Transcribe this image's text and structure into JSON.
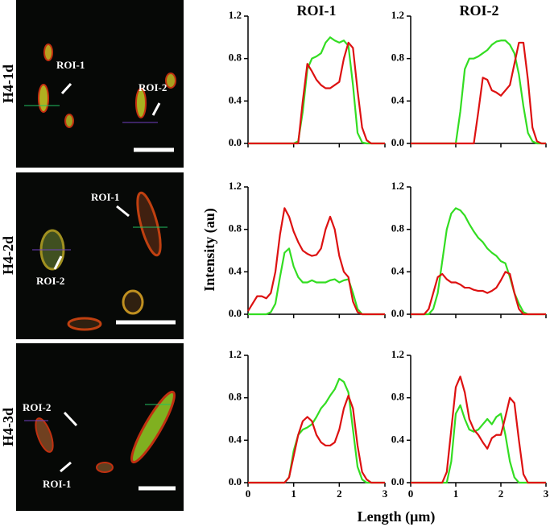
{
  "figure": {
    "column_titles": [
      "ROI-1",
      "ROI-2"
    ],
    "y_label": "Intensity (au)",
    "x_label": "Length (μm)"
  },
  "images": [
    {
      "row_label": "H4-1d",
      "annotations": [
        "ROI-1",
        "ROI-2"
      ]
    },
    {
      "row_label": "H4-2d",
      "annotations": [
        "ROI-1",
        "ROI-2"
      ]
    },
    {
      "row_label": "H4-3d",
      "annotations": [
        "ROI-2",
        "ROI-1"
      ]
    }
  ],
  "chart_data": [
    {
      "type": "line",
      "xlim": [
        0,
        3
      ],
      "ylim": [
        0,
        1.2
      ],
      "xticks": [
        0,
        1,
        2,
        3
      ],
      "yticks": [
        {
          "value": 0,
          "label": "0.0"
        },
        0.4,
        0.8,
        1.2
      ],
      "x": [
        0,
        0.1,
        0.2,
        0.3,
        0.4,
        0.5,
        0.6,
        0.7,
        0.8,
        0.9,
        1,
        1.1,
        1.2,
        1.3,
        1.4,
        1.5,
        1.6,
        1.7,
        1.8,
        1.9,
        2,
        2.1,
        2.2,
        2.3,
        2.4,
        2.5,
        2.6,
        2.7,
        2.8,
        2.9,
        3
      ],
      "series": [
        {
          "color": "#33dd22",
          "values": [
            0,
            0,
            0,
            0,
            0,
            0,
            0,
            0,
            0,
            0,
            0,
            0.02,
            0.3,
            0.7,
            0.8,
            0.82,
            0.85,
            0.95,
            1.0,
            0.97,
            0.95,
            0.97,
            0.92,
            0.55,
            0.1,
            0.01,
            0,
            0,
            0,
            0,
            0
          ]
        },
        {
          "color": "#dd1111",
          "values": [
            0,
            0,
            0,
            0,
            0,
            0,
            0,
            0,
            0,
            0,
            0,
            0,
            0.4,
            0.75,
            0.68,
            0.6,
            0.55,
            0.52,
            0.52,
            0.55,
            0.58,
            0.8,
            0.95,
            0.9,
            0.5,
            0.15,
            0.03,
            0,
            0,
            0,
            0
          ]
        }
      ]
    },
    {
      "type": "line",
      "xlim": [
        0,
        3
      ],
      "ylim": [
        0,
        1.2
      ],
      "xticks": [
        0,
        1,
        2,
        3
      ],
      "yticks": [
        {
          "value": 0,
          "label": "0.0"
        },
        0.4,
        0.8,
        1.2
      ],
      "x": [
        0,
        0.1,
        0.2,
        0.3,
        0.4,
        0.5,
        0.6,
        0.7,
        0.8,
        0.9,
        1,
        1.1,
        1.2,
        1.3,
        1.4,
        1.5,
        1.6,
        1.7,
        1.8,
        1.9,
        2,
        2.1,
        2.2,
        2.3,
        2.4,
        2.5,
        2.6,
        2.7,
        2.8,
        2.9,
        3
      ],
      "series": [
        {
          "color": "#33dd22",
          "values": [
            0,
            0,
            0,
            0,
            0,
            0,
            0,
            0,
            0,
            0,
            0,
            0.3,
            0.7,
            0.8,
            0.8,
            0.82,
            0.85,
            0.88,
            0.93,
            0.96,
            0.97,
            0.97,
            0.93,
            0.85,
            0.65,
            0.35,
            0.1,
            0.02,
            0,
            0,
            0
          ]
        },
        {
          "color": "#dd1111",
          "values": [
            0,
            0,
            0,
            0,
            0,
            0,
            0,
            0,
            0,
            0,
            0,
            0,
            0,
            0,
            0,
            0.3,
            0.62,
            0.6,
            0.5,
            0.48,
            0.45,
            0.5,
            0.55,
            0.75,
            0.95,
            0.95,
            0.6,
            0.15,
            0.02,
            0,
            0
          ]
        }
      ]
    },
    {
      "type": "line",
      "xlim": [
        0,
        3
      ],
      "ylim": [
        0,
        1.2
      ],
      "xticks": [
        0,
        1,
        2,
        3
      ],
      "yticks": [
        {
          "value": 0,
          "label": "0.0"
        },
        0.4,
        0.8,
        1.2
      ],
      "x": [
        0,
        0.1,
        0.2,
        0.3,
        0.4,
        0.5,
        0.6,
        0.7,
        0.8,
        0.9,
        1,
        1.1,
        1.2,
        1.3,
        1.4,
        1.5,
        1.6,
        1.7,
        1.8,
        1.9,
        2,
        2.1,
        2.2,
        2.3,
        2.4,
        2.5,
        2.6,
        2.7,
        2.8,
        2.9,
        3
      ],
      "series": [
        {
          "color": "#33dd22",
          "values": [
            0,
            0,
            0,
            0,
            0,
            0.02,
            0.1,
            0.35,
            0.58,
            0.62,
            0.45,
            0.35,
            0.3,
            0.3,
            0.32,
            0.3,
            0.3,
            0.3,
            0.32,
            0.33,
            0.3,
            0.32,
            0.33,
            0.2,
            0.05,
            0,
            0,
            0,
            0,
            0,
            0
          ]
        },
        {
          "color": "#dd1111",
          "values": [
            0.03,
            0.1,
            0.17,
            0.17,
            0.15,
            0.2,
            0.4,
            0.75,
            1.0,
            0.92,
            0.78,
            0.68,
            0.6,
            0.57,
            0.55,
            0.56,
            0.62,
            0.8,
            0.92,
            0.8,
            0.55,
            0.4,
            0.35,
            0.12,
            0.02,
            0,
            0,
            0,
            0,
            0,
            0
          ]
        }
      ]
    },
    {
      "type": "line",
      "xlim": [
        0,
        3
      ],
      "ylim": [
        0,
        1.2
      ],
      "xticks": [
        0,
        1,
        2,
        3
      ],
      "yticks": [
        {
          "value": 0,
          "label": "0.0"
        },
        0.4,
        0.8,
        1.2
      ],
      "x": [
        0,
        0.1,
        0.2,
        0.3,
        0.4,
        0.5,
        0.6,
        0.7,
        0.8,
        0.9,
        1,
        1.1,
        1.2,
        1.3,
        1.4,
        1.5,
        1.6,
        1.7,
        1.8,
        1.9,
        2,
        2.1,
        2.2,
        2.3,
        2.4,
        2.5,
        2.6,
        2.7,
        2.8,
        2.9,
        3
      ],
      "series": [
        {
          "color": "#33dd22",
          "values": [
            0,
            0,
            0,
            0,
            0,
            0.05,
            0.2,
            0.5,
            0.8,
            0.95,
            1.0,
            0.98,
            0.93,
            0.85,
            0.78,
            0.72,
            0.68,
            0.62,
            0.58,
            0.55,
            0.5,
            0.48,
            0.35,
            0.2,
            0.1,
            0.02,
            0,
            0,
            0,
            0,
            0
          ]
        },
        {
          "color": "#dd1111",
          "values": [
            0,
            0,
            0,
            0,
            0.05,
            0.2,
            0.35,
            0.38,
            0.33,
            0.3,
            0.3,
            0.28,
            0.25,
            0.25,
            0.23,
            0.22,
            0.22,
            0.2,
            0.22,
            0.25,
            0.32,
            0.4,
            0.38,
            0.2,
            0.05,
            0,
            0,
            0,
            0,
            0,
            0
          ]
        }
      ]
    },
    {
      "type": "line",
      "xlim": [
        0,
        3
      ],
      "ylim": [
        0,
        1.2
      ],
      "xticks": [
        0,
        1,
        2,
        3
      ],
      "yticks": [
        {
          "value": 0,
          "label": "0.0"
        },
        0.4,
        0.8,
        1.2
      ],
      "x": [
        0,
        0.1,
        0.2,
        0.3,
        0.4,
        0.5,
        0.6,
        0.7,
        0.8,
        0.9,
        1,
        1.1,
        1.2,
        1.3,
        1.4,
        1.5,
        1.6,
        1.7,
        1.8,
        1.9,
        2,
        2.1,
        2.2,
        2.3,
        2.4,
        2.5,
        2.6,
        2.7,
        2.8,
        2.9,
        3
      ],
      "series": [
        {
          "color": "#33dd22",
          "values": [
            0,
            0,
            0,
            0,
            0,
            0,
            0,
            0,
            0,
            0.05,
            0.3,
            0.45,
            0.5,
            0.52,
            0.55,
            0.62,
            0.7,
            0.75,
            0.82,
            0.88,
            0.98,
            0.95,
            0.85,
            0.5,
            0.15,
            0.03,
            0,
            0,
            0,
            0,
            0
          ]
        },
        {
          "color": "#dd1111",
          "values": [
            0,
            0,
            0,
            0,
            0,
            0,
            0,
            0,
            0,
            0.05,
            0.25,
            0.45,
            0.58,
            0.62,
            0.58,
            0.45,
            0.38,
            0.35,
            0.35,
            0.38,
            0.5,
            0.7,
            0.82,
            0.7,
            0.35,
            0.1,
            0.03,
            0,
            0,
            0,
            0
          ]
        }
      ]
    },
    {
      "type": "line",
      "xlim": [
        0,
        3
      ],
      "ylim": [
        0,
        1.2
      ],
      "xticks": [
        0,
        1,
        2,
        3
      ],
      "yticks": [
        {
          "value": 0,
          "label": "0.0"
        },
        0.4,
        0.8,
        1.2
      ],
      "x": [
        0,
        0.1,
        0.2,
        0.3,
        0.4,
        0.5,
        0.6,
        0.7,
        0.8,
        0.9,
        1,
        1.1,
        1.2,
        1.3,
        1.4,
        1.5,
        1.6,
        1.7,
        1.8,
        1.9,
        2,
        2.1,
        2.2,
        2.3,
        2.4,
        2.5,
        2.6,
        2.7,
        2.8,
        2.9,
        3
      ],
      "series": [
        {
          "color": "#33dd22",
          "values": [
            0,
            0,
            0,
            0,
            0,
            0,
            0,
            0,
            0,
            0.2,
            0.65,
            0.73,
            0.6,
            0.5,
            0.48,
            0.5,
            0.55,
            0.6,
            0.55,
            0.62,
            0.65,
            0.45,
            0.2,
            0.05,
            0,
            0,
            0,
            0,
            0,
            0,
            0
          ]
        },
        {
          "color": "#dd1111",
          "values": [
            0,
            0,
            0,
            0,
            0,
            0,
            0,
            0,
            0.1,
            0.5,
            0.9,
            1.0,
            0.85,
            0.6,
            0.5,
            0.45,
            0.38,
            0.32,
            0.42,
            0.45,
            0.45,
            0.62,
            0.8,
            0.75,
            0.4,
            0.08,
            0,
            0,
            0,
            0,
            0
          ]
        }
      ]
    }
  ]
}
